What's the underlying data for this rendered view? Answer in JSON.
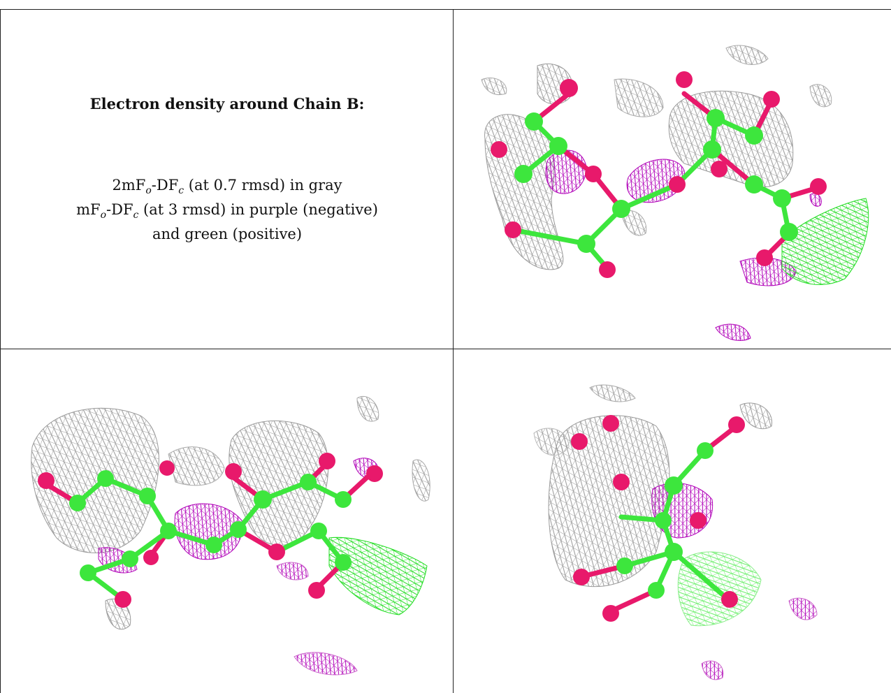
{
  "caption": {
    "title": "Electron density around Chain B:",
    "line1_pre": "2mF",
    "line1_sub_o": "o",
    "line1_mid": "-DF",
    "line1_sub_c": "c",
    "line1_post": " (at 0.7 rmsd) in gray",
    "line2_pre": "mF",
    "line2_sub_o": "o",
    "line2_mid": "-DF",
    "line2_sub_c": "c",
    "line2_post": " (at 3 rmsd) in purple (negative)",
    "line3": "and green (positive)"
  },
  "colors": {
    "carbon": "#3de63d",
    "oxygen": "#e8196b",
    "mesh_gray": "#9a9a9a",
    "mesh_purple": "#b000b8",
    "mesh_green": "#22dd22",
    "border": "#222222"
  },
  "panels": [
    {
      "name": "view-1",
      "description_visible": false
    },
    {
      "name": "view-2",
      "description_visible": false
    },
    {
      "name": "view-3",
      "description_visible": false
    }
  ]
}
